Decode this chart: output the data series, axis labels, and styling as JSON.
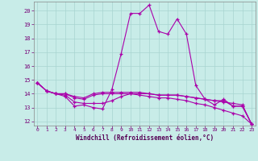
{
  "xlabel": "Windchill (Refroidissement éolien,°C)",
  "bg_color": "#c8ece8",
  "grid_color": "#a8d4d0",
  "line_color": "#aa00aa",
  "xlim_min": -0.4,
  "xlim_max": 23.4,
  "ylim_min": 11.7,
  "ylim_max": 20.65,
  "yticks": [
    12,
    13,
    14,
    15,
    16,
    17,
    18,
    19,
    20
  ],
  "xticks": [
    0,
    1,
    2,
    3,
    4,
    5,
    6,
    7,
    8,
    9,
    10,
    11,
    12,
    13,
    14,
    15,
    16,
    17,
    18,
    19,
    20,
    21,
    22,
    23
  ],
  "series": [
    [
      14.8,
      14.2,
      14.0,
      13.8,
      13.1,
      13.2,
      13.0,
      12.9,
      14.3,
      16.9,
      19.8,
      19.8,
      20.4,
      18.5,
      18.3,
      19.4,
      18.3,
      14.6,
      13.6,
      13.2,
      13.6,
      13.1,
      13.1,
      11.8
    ],
    [
      14.8,
      14.2,
      14.0,
      14.0,
      13.8,
      13.7,
      14.0,
      14.1,
      14.1,
      14.1,
      14.1,
      14.1,
      14.0,
      13.9,
      13.9,
      13.9,
      13.8,
      13.7,
      13.6,
      13.5,
      13.4,
      13.3,
      13.2,
      11.8
    ],
    [
      14.8,
      14.2,
      14.0,
      14.0,
      13.7,
      13.6,
      13.9,
      14.0,
      14.0,
      14.0,
      14.0,
      13.9,
      13.8,
      13.7,
      13.7,
      13.6,
      13.5,
      13.3,
      13.2,
      13.0,
      12.8,
      12.6,
      12.4,
      11.8
    ],
    [
      14.8,
      14.2,
      14.0,
      13.9,
      13.4,
      13.3,
      13.3,
      13.3,
      13.5,
      13.8,
      14.0,
      14.0,
      14.0,
      13.9,
      13.9,
      13.9,
      13.8,
      13.7,
      13.6,
      13.5,
      13.5,
      13.1,
      13.1,
      11.8
    ]
  ]
}
